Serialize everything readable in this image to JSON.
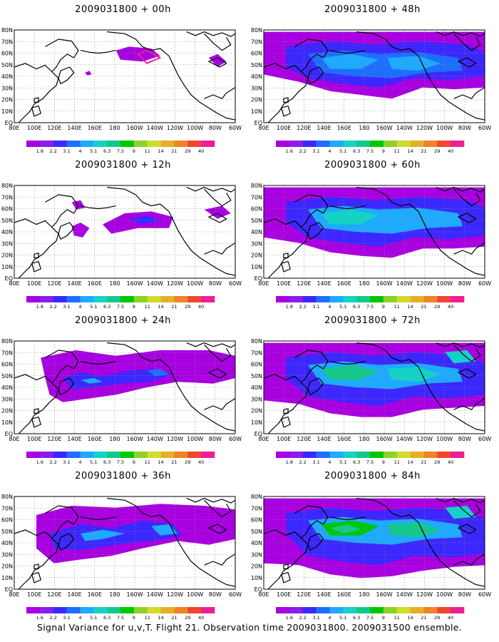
{
  "caption": "Signal Variance for u,v,T. Flight 21. Observation time 2009031800. 2009031500 ensemble.",
  "lat_labels": [
    "80N",
    "70N",
    "60N",
    "50N",
    "40N",
    "30N",
    "20N",
    "10N",
    "EQ"
  ],
  "lon_labels": [
    "80E",
    "100E",
    "120E",
    "140E",
    "160E",
    "180",
    "160W",
    "140W",
    "120W",
    "100W",
    "80W",
    "60W"
  ],
  "colorbar": {
    "labels": [
      "1.8",
      "2.2",
      "3.1",
      "4",
      "5.1",
      "6.3",
      "7.5",
      "9",
      "11",
      "14",
      "21",
      "29",
      "40"
    ],
    "labels_alt": [
      "1.6",
      "2.2",
      "3.1",
      "4",
      "5.1",
      "6.3",
      "7.5",
      "9",
      "11",
      "14",
      "21",
      "29",
      "40"
    ],
    "colors": [
      "#a800e0",
      "#8c1ee6",
      "#3c28ff",
      "#1e6eff",
      "#1eaaff",
      "#14d2c8",
      "#14c88c",
      "#00c800",
      "#8cd228",
      "#d2dc28",
      "#e6af28",
      "#f08228",
      "#f04632",
      "#f01e96"
    ]
  },
  "panels": [
    {
      "title": "2009031800 + 00h",
      "level": 0,
      "alt_bar": false
    },
    {
      "title": "2009031800 + 48h",
      "level": 4,
      "alt_bar": true
    },
    {
      "title": "2009031800 + 12h",
      "level": 1,
      "alt_bar": false
    },
    {
      "title": "2009031800 + 60h",
      "level": 5,
      "alt_bar": false
    },
    {
      "title": "2009031800 + 24h",
      "level": 2,
      "alt_bar": true
    },
    {
      "title": "2009031800 + 72h",
      "level": 6,
      "alt_bar": false
    },
    {
      "title": "2009031800 + 36h",
      "level": 3,
      "alt_bar": true
    },
    {
      "title": "2009031800 + 84h",
      "level": 7,
      "alt_bar": true
    }
  ]
}
